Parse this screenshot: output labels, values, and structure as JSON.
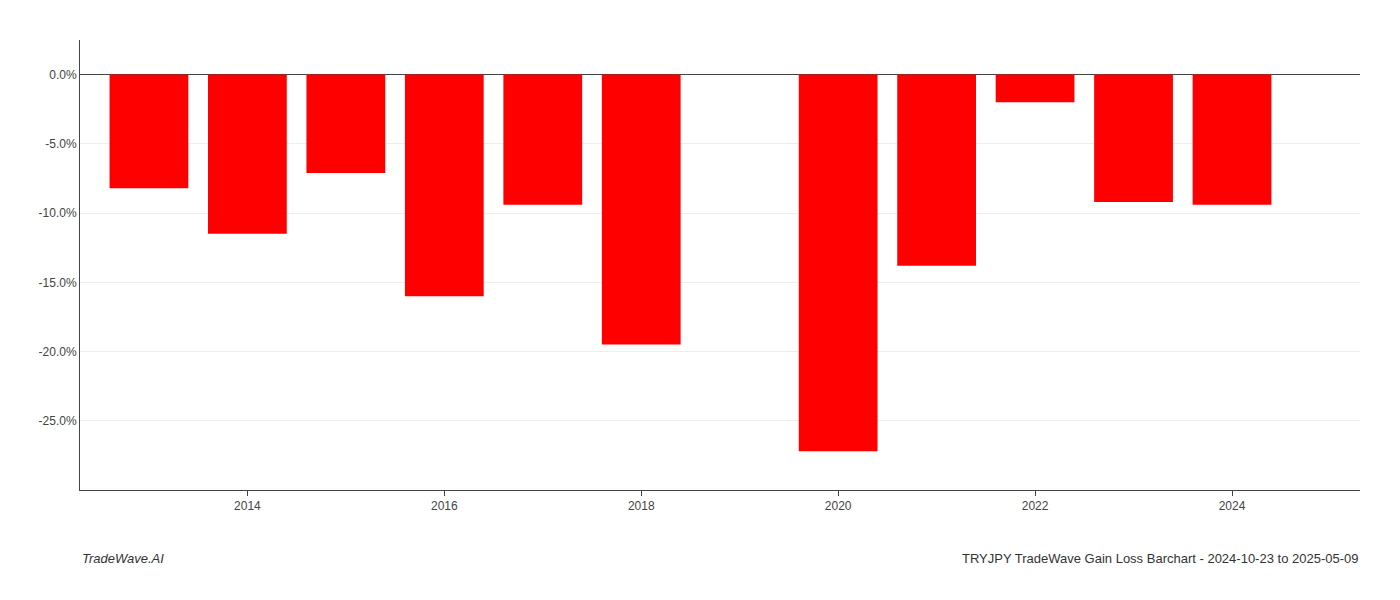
{
  "chart_data": {
    "type": "bar",
    "x": [
      2013,
      2014,
      2015,
      2016,
      2017,
      2018,
      2019,
      2020,
      2021,
      2022,
      2023,
      2024
    ],
    "values": [
      -0.082,
      -0.115,
      -0.071,
      -0.16,
      -0.094,
      -0.195,
      0.0,
      -0.272,
      -0.138,
      -0.02,
      -0.092,
      -0.094
    ],
    "color": "#ff0000",
    "xlim": [
      2012.3,
      2025.3
    ],
    "xticks": [
      2014,
      2016,
      2018,
      2020,
      2022,
      2024
    ],
    "ylim": [
      -0.3,
      0.025
    ],
    "yticks": [
      {
        "value": 0.0,
        "label": "0.0%"
      },
      {
        "value": -0.05,
        "label": "-5.0%"
      },
      {
        "value": -0.1,
        "label": "-10.0%"
      },
      {
        "value": -0.15,
        "label": "-15.0%"
      },
      {
        "value": -0.2,
        "label": "-20.0%"
      },
      {
        "value": -0.25,
        "label": "-25.0%"
      }
    ],
    "grid": true,
    "annotations": [
      "TradeWave.AI",
      "TRYJPY TradeWave Gain Loss Barchart - 2024-10-23 to 2025-05-09"
    ]
  }
}
